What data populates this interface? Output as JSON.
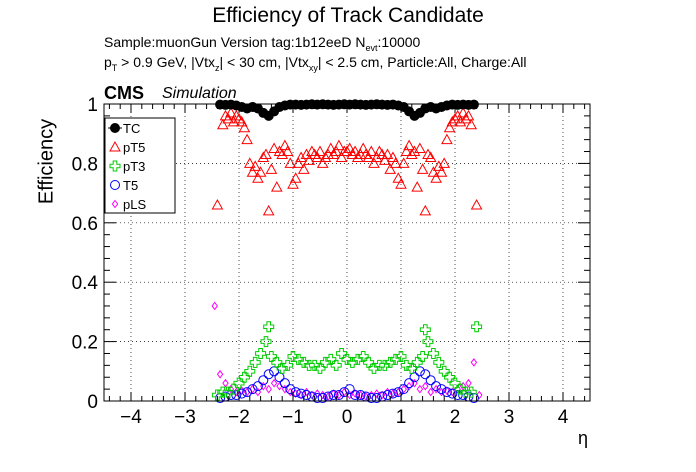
{
  "title": "Efficiency of Track Candidate",
  "subtitle_line1": "Sample:muonGun   Version tag:1b12eeD  N",
  "subtitle_line1_sub": "evt",
  "subtitle_line1_tail": ":10000",
  "subtitle_line2": {
    "p1": "p",
    "p1sub": "T",
    "p2": " > 0.9 GeV, |Vtx",
    "p2sub": "z",
    "p3": "| < 30 cm, |Vtx",
    "p3sub": "xy",
    "p4": "| < 2.5 cm, Particle:All, Charge:All"
  },
  "cms_label": "CMS",
  "simulation_label": "Simulation",
  "chart_data": {
    "type": "scatter",
    "xlabel": "η",
    "ylabel": "Efficiency",
    "xlim": [
      -4.5,
      4.5
    ],
    "ylim": [
      0,
      1.0
    ],
    "xticks": [
      -4,
      -3,
      -2,
      -1,
      0,
      1,
      2,
      3,
      4
    ],
    "xtick_labels": [
      "−4",
      "−3",
      "−2",
      "−1",
      "0",
      "1",
      "2",
      "3",
      "4"
    ],
    "yticks": [
      0,
      0.2,
      0.4,
      0.6,
      0.8,
      1
    ],
    "ytick_labels": [
      "0",
      "0.2",
      "0.4",
      "0.6",
      "0.8",
      "1"
    ],
    "grid": true,
    "legend_position": "top-left",
    "series": [
      {
        "name": "TC",
        "color": "#000000",
        "marker": "filled-circle",
        "x": [
          -2.35,
          -2.25,
          -2.15,
          -2.05,
          -1.95,
          -1.85,
          -1.75,
          -1.65,
          -1.55,
          -1.45,
          -1.35,
          -1.25,
          -1.15,
          -1.05,
          -0.95,
          -0.85,
          -0.75,
          -0.65,
          -0.55,
          -0.45,
          -0.35,
          -0.25,
          -0.15,
          -0.05,
          0.05,
          0.15,
          0.25,
          0.35,
          0.45,
          0.55,
          0.65,
          0.75,
          0.85,
          0.95,
          1.05,
          1.15,
          1.25,
          1.35,
          1.45,
          1.55,
          1.65,
          1.75,
          1.85,
          1.95,
          2.05,
          2.15,
          2.25,
          2.35
        ],
        "y": [
          0.998,
          0.997,
          0.998,
          0.995,
          0.99,
          0.985,
          0.99,
          0.985,
          0.97,
          0.96,
          0.975,
          0.99,
          0.995,
          0.998,
          0.998,
          0.997,
          0.998,
          0.999,
          0.998,
          0.999,
          0.998,
          0.997,
          0.998,
          0.999,
          0.998,
          0.999,
          0.998,
          0.997,
          0.998,
          0.999,
          0.998,
          0.997,
          0.998,
          0.995,
          0.99,
          0.975,
          0.96,
          0.97,
          0.985,
          0.99,
          0.985,
          0.99,
          0.995,
          0.998,
          0.997,
          0.998,
          0.997,
          0.998
        ]
      },
      {
        "name": "pT5",
        "color": "#ff0000",
        "marker": "open-triangle",
        "x": [
          -2.4,
          -2.3,
          -2.25,
          -2.2,
          -2.15,
          -2.1,
          -2.05,
          -2.0,
          -1.95,
          -1.9,
          -1.85,
          -1.8,
          -1.75,
          -1.7,
          -1.65,
          -1.6,
          -1.55,
          -1.5,
          -1.45,
          -1.4,
          -1.35,
          -1.3,
          -1.25,
          -1.2,
          -1.15,
          -1.1,
          -1.05,
          -1.0,
          -0.95,
          -0.9,
          -0.85,
          -0.8,
          -0.75,
          -0.7,
          -0.65,
          -0.6,
          -0.55,
          -0.5,
          -0.45,
          -0.4,
          -0.35,
          -0.3,
          -0.25,
          -0.2,
          -0.15,
          -0.1,
          -0.05,
          0.0,
          0.05,
          0.1,
          0.15,
          0.2,
          0.25,
          0.3,
          0.35,
          0.4,
          0.45,
          0.5,
          0.55,
          0.6,
          0.65,
          0.7,
          0.75,
          0.8,
          0.85,
          0.9,
          0.95,
          1.0,
          1.05,
          1.1,
          1.15,
          1.2,
          1.25,
          1.3,
          1.35,
          1.4,
          1.45,
          1.5,
          1.55,
          1.6,
          1.65,
          1.7,
          1.75,
          1.8,
          1.85,
          1.9,
          1.95,
          2.0,
          2.05,
          2.1,
          2.15,
          2.2,
          2.25,
          2.3,
          2.4
        ],
        "y": [
          0.66,
          0.93,
          0.96,
          0.95,
          0.97,
          0.94,
          0.96,
          0.95,
          0.94,
          0.92,
          0.88,
          0.8,
          0.77,
          0.79,
          0.75,
          0.77,
          0.82,
          0.83,
          0.64,
          0.78,
          0.85,
          0.72,
          0.84,
          0.83,
          0.86,
          0.84,
          0.8,
          0.73,
          0.75,
          0.8,
          0.82,
          0.78,
          0.83,
          0.81,
          0.84,
          0.83,
          0.82,
          0.84,
          0.8,
          0.82,
          0.83,
          0.85,
          0.83,
          0.84,
          0.86,
          0.82,
          0.84,
          0.84,
          0.85,
          0.83,
          0.84,
          0.82,
          0.83,
          0.85,
          0.83,
          0.82,
          0.84,
          0.8,
          0.82,
          0.84,
          0.83,
          0.81,
          0.83,
          0.78,
          0.82,
          0.8,
          0.75,
          0.73,
          0.8,
          0.84,
          0.86,
          0.83,
          0.84,
          0.72,
          0.85,
          0.78,
          0.64,
          0.83,
          0.82,
          0.77,
          0.75,
          0.79,
          0.77,
          0.8,
          0.88,
          0.92,
          0.94,
          0.95,
          0.96,
          0.94,
          0.97,
          0.95,
          0.96,
          0.93,
          0.66
        ]
      },
      {
        "name": "pT3",
        "color": "#00cc00",
        "marker": "open-cross",
        "x": [
          -2.4,
          -2.3,
          -2.2,
          -2.1,
          -2.0,
          -1.9,
          -1.8,
          -1.7,
          -1.6,
          -1.5,
          -1.45,
          -1.4,
          -1.3,
          -1.2,
          -1.1,
          -1.0,
          -0.9,
          -0.8,
          -0.7,
          -0.6,
          -0.5,
          -0.4,
          -0.3,
          -0.2,
          -0.1,
          0.0,
          0.1,
          0.2,
          0.3,
          0.4,
          0.5,
          0.6,
          0.7,
          0.8,
          0.9,
          1.0,
          1.1,
          1.2,
          1.3,
          1.4,
          1.45,
          1.5,
          1.6,
          1.7,
          1.8,
          1.9,
          2.0,
          2.1,
          2.2,
          2.3,
          2.4
        ],
        "y": [
          0.02,
          0.03,
          0.03,
          0.04,
          0.06,
          0.08,
          0.1,
          0.13,
          0.16,
          0.2,
          0.25,
          0.15,
          0.13,
          0.11,
          0.12,
          0.15,
          0.14,
          0.13,
          0.12,
          0.12,
          0.11,
          0.13,
          0.14,
          0.12,
          0.16,
          0.14,
          0.13,
          0.14,
          0.15,
          0.13,
          0.11,
          0.12,
          0.12,
          0.13,
          0.14,
          0.15,
          0.12,
          0.11,
          0.13,
          0.15,
          0.24,
          0.2,
          0.16,
          0.13,
          0.1,
          0.08,
          0.06,
          0.04,
          0.03,
          0.03,
          0.25
        ]
      },
      {
        "name": "T5",
        "color": "#0000ff",
        "marker": "open-circle",
        "x": [
          -2.35,
          -2.25,
          -2.15,
          -2.05,
          -1.95,
          -1.85,
          -1.75,
          -1.65,
          -1.55,
          -1.45,
          -1.35,
          -1.25,
          -1.15,
          -1.05,
          -0.95,
          -0.85,
          -0.75,
          -0.65,
          -0.55,
          -0.45,
          -0.35,
          -0.25,
          -0.15,
          -0.05,
          0.05,
          0.15,
          0.25,
          0.35,
          0.45,
          0.55,
          0.65,
          0.75,
          0.85,
          0.95,
          1.05,
          1.15,
          1.25,
          1.35,
          1.45,
          1.55,
          1.65,
          1.75,
          1.85,
          1.95,
          2.05,
          2.15,
          2.25,
          2.35
        ],
        "y": [
          0.01,
          0.015,
          0.02,
          0.02,
          0.025,
          0.03,
          0.04,
          0.05,
          0.07,
          0.09,
          0.1,
          0.08,
          0.06,
          0.04,
          0.03,
          0.025,
          0.02,
          0.015,
          0.01,
          0.01,
          0.015,
          0.02,
          0.02,
          0.03,
          0.04,
          0.02,
          0.02,
          0.015,
          0.01,
          0.01,
          0.015,
          0.02,
          0.025,
          0.03,
          0.04,
          0.06,
          0.08,
          0.1,
          0.09,
          0.07,
          0.05,
          0.04,
          0.03,
          0.025,
          0.02,
          0.02,
          0.015,
          0.01
        ]
      },
      {
        "name": "pLS",
        "color": "#ff00ff",
        "marker": "open-diamond",
        "x": [
          -2.45,
          -2.35,
          -2.25,
          -2.15,
          -2.05,
          -1.95,
          -1.85,
          -1.75,
          -1.65,
          -1.55,
          -1.45,
          -1.35,
          -1.25,
          -1.15,
          -1.05,
          -0.95,
          -0.85,
          -0.75,
          -0.65,
          -0.55,
          -0.45,
          -0.35,
          -0.25,
          -0.15,
          -0.05,
          0.05,
          0.15,
          0.25,
          0.35,
          0.45,
          0.55,
          0.65,
          0.75,
          0.85,
          0.95,
          1.05,
          1.15,
          1.25,
          1.35,
          1.45,
          1.55,
          1.65,
          1.75,
          1.85,
          1.95,
          2.05,
          2.15,
          2.25,
          2.35,
          2.45
        ],
        "y": [
          0.32,
          0.09,
          0.06,
          0.04,
          0.03,
          0.035,
          0.03,
          0.04,
          0.03,
          0.05,
          0.04,
          0.06,
          0.05,
          0.04,
          0.03,
          0.025,
          0.02,
          0.03,
          0.02,
          0.025,
          0.02,
          0.015,
          0.025,
          0.02,
          0.03,
          0.02,
          0.025,
          0.02,
          0.015,
          0.02,
          0.025,
          0.02,
          0.03,
          0.025,
          0.03,
          0.04,
          0.05,
          0.06,
          0.04,
          0.05,
          0.03,
          0.04,
          0.03,
          0.035,
          0.03,
          0.04,
          0.05,
          0.06,
          0.13,
          0.02
        ]
      }
    ]
  }
}
